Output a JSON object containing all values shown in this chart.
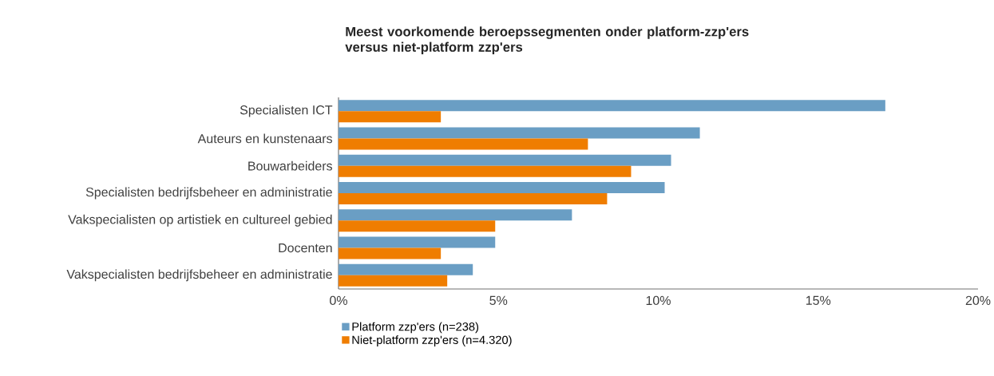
{
  "chart_data": {
    "type": "bar",
    "orientation": "horizontal",
    "title": "Meest voorkomende beroepssegmenten onder platform-zzp'ers versus niet-platform zzp'ers",
    "categories": [
      "Specialisten ICT",
      "Auteurs en kunstenaars",
      "Bouwarbeiders",
      "Specialisten bedrijfsbeheer en administratie",
      "Vakspecialisten op artistiek en cultureel gebied",
      "Docenten",
      "Vakspecialisten bedrijfsbeheer en administratie"
    ],
    "series": [
      {
        "name": "Platform zzp'ers (n=238)",
        "color": "#6a9ec4",
        "values": [
          17.1,
          11.3,
          10.4,
          10.2,
          7.3,
          4.9,
          4.2
        ]
      },
      {
        "name": "Niet-platform zzp'ers (n=4.320)",
        "color": "#ef7d00",
        "values": [
          3.2,
          7.8,
          9.15,
          8.4,
          4.9,
          3.2,
          3.4
        ]
      }
    ],
    "xlim": [
      0,
      20
    ],
    "xticks": [
      {
        "value": 0,
        "label": "0%"
      },
      {
        "value": 5,
        "label": "5%"
      },
      {
        "value": 10,
        "label": "10%"
      },
      {
        "value": 15,
        "label": "15%"
      },
      {
        "value": 20,
        "label": "20%"
      }
    ],
    "grid": false,
    "legend": "bottom left"
  }
}
